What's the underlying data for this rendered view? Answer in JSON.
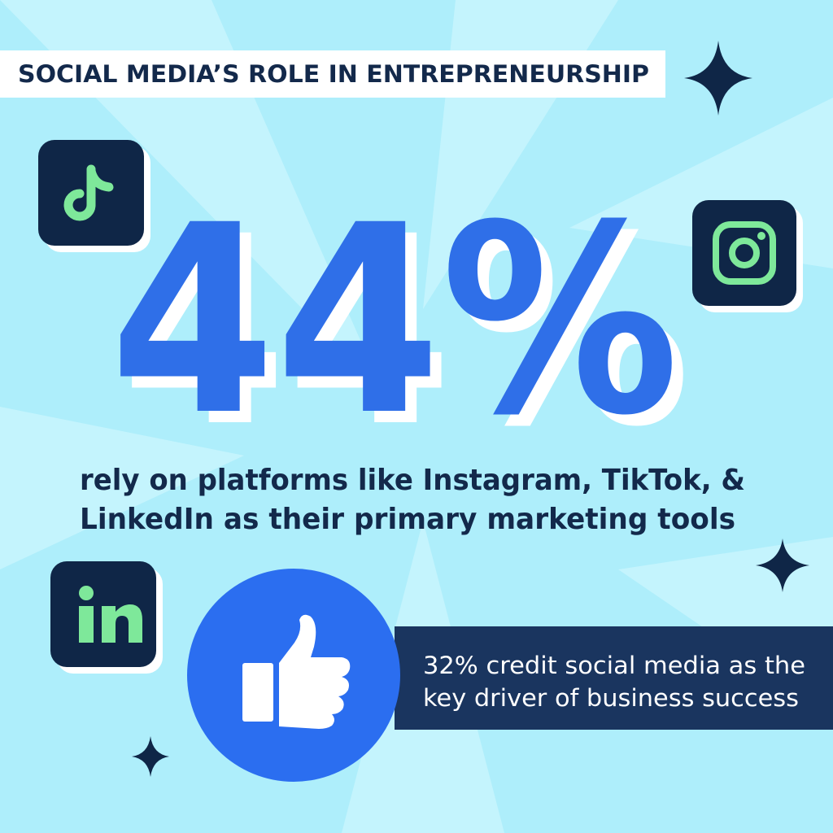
{
  "header": {
    "title": "SOCIAL MEDIA’S ROLE IN ENTREPRENEURSHIP"
  },
  "stat": {
    "value": "44%",
    "lines": [
      "rely on platforms like Instagram, TikTok, &",
      "LinkedIn as their primary marketing tools"
    ]
  },
  "callout": {
    "lines": [
      "32% credit social media as the",
      "key driver of business success"
    ]
  }
}
